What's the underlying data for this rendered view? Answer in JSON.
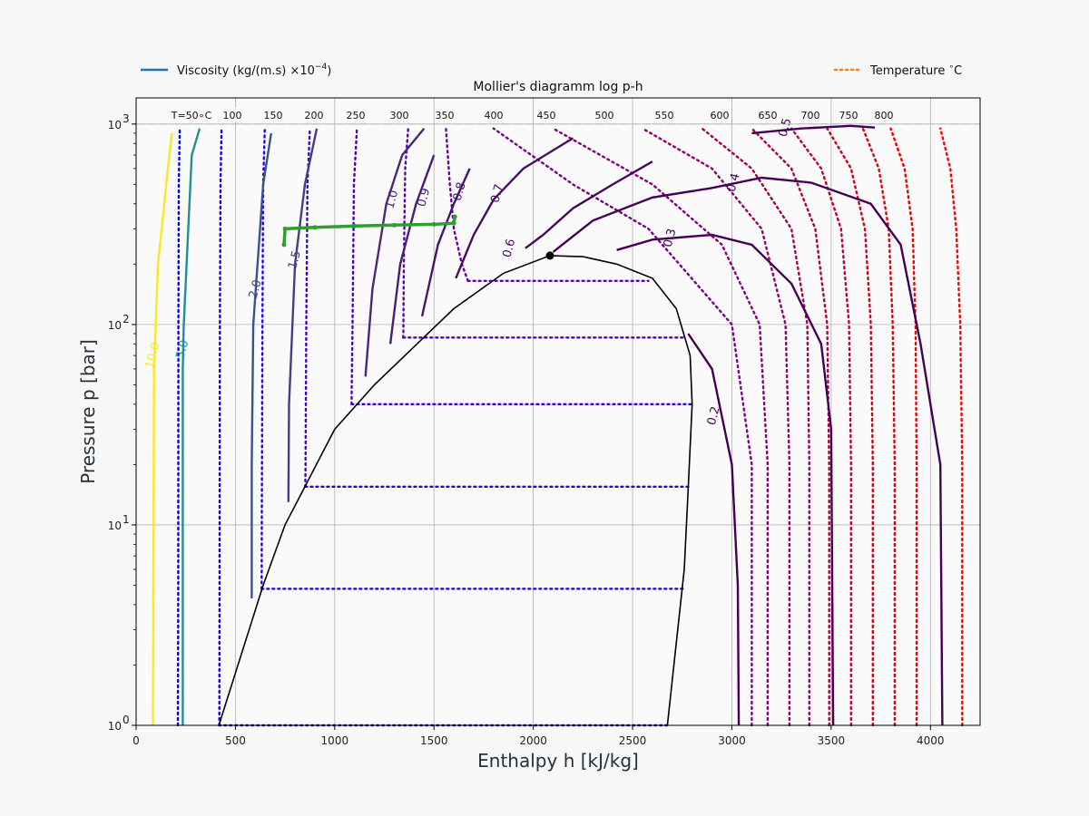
{
  "chart_data": {
    "type": "line",
    "title": "Mollier's diagramm log p-h",
    "xlabel": "Enthalpy h [kJ/kg]",
    "ylabel": "Pressure p [bar]",
    "xlim": [
      0,
      4250
    ],
    "ylim": [
      1,
      1350
    ],
    "yscale": "log",
    "grid": true,
    "legend_placement": "top, outside plot",
    "x_ticks": [
      "0",
      "500",
      "1000",
      "1500",
      "2000",
      "2500",
      "3000",
      "3500",
      "4000"
    ],
    "y_ticks": [
      {
        "value": 1,
        "base": "10",
        "exp": "0"
      },
      {
        "value": 10,
        "base": "10",
        "exp": "1"
      },
      {
        "value": 100,
        "base": "10",
        "exp": "2"
      },
      {
        "value": 1000,
        "base": "10",
        "exp": "3"
      }
    ],
    "legend": [
      {
        "label": "Viscosity (kg/(m.s) ×10",
        "sup": "−4",
        "tail": ")",
        "style": "solid",
        "color": "#1f77b4"
      },
      {
        "label": "Temperature ",
        "sup": "∘",
        "tail": "C",
        "style": "dotted",
        "color": "#ff7f0e"
      }
    ],
    "temperature_labels": [
      "T=50∘C",
      "100",
      "150",
      "200",
      "250",
      "300",
      "350",
      "400",
      "450",
      "500",
      "550",
      "600",
      "650",
      "700",
      "750",
      "800"
    ],
    "saturation_dome": {
      "liquid": [
        [
          417,
          1
        ],
        [
          640,
          5
        ],
        [
          750,
          10
        ],
        [
          1000,
          30
        ],
        [
          1200,
          50
        ],
        [
          1600,
          120
        ],
        [
          1850,
          180
        ],
        [
          2084,
          220.6
        ]
      ],
      "vapor": [
        [
          2084,
          220.6
        ],
        [
          2250,
          218
        ],
        [
          2420,
          200
        ],
        [
          2600,
          170
        ],
        [
          2720,
          120
        ],
        [
          2790,
          70
        ],
        [
          2800,
          40
        ],
        [
          2780,
          15
        ],
        [
          2760,
          6
        ],
        [
          2675,
          1
        ]
      ],
      "critical_point": [
        2084,
        220.6
      ]
    },
    "isotherms": [
      {
        "label": "50",
        "color": "#0000ff",
        "points": [
          [
            210,
            1
          ],
          [
            212,
            5
          ],
          [
            213,
            100
          ],
          [
            215,
            500
          ],
          [
            220,
            950
          ]
        ]
      },
      {
        "label": "100",
        "color": "#1500f0",
        "points": [
          [
            419,
            1
          ],
          [
            420,
            5
          ],
          [
            422,
            100
          ],
          [
            425,
            500
          ],
          [
            430,
            950
          ]
        ]
      },
      {
        "label": "150",
        "color": "#2a00e0",
        "points": [
          [
            632,
            4.8
          ],
          [
            633,
            10
          ],
          [
            636,
            100
          ],
          [
            640,
            500
          ],
          [
            648,
            950
          ]
        ]
      },
      {
        "label": "200",
        "color": "#3c00d0",
        "points": [
          [
            852,
            15.5
          ],
          [
            853,
            20
          ],
          [
            857,
            100
          ],
          [
            863,
            500
          ],
          [
            875,
            950
          ]
        ]
      },
      {
        "label": "250",
        "color": "#4a00c0",
        "points": [
          [
            1085,
            40
          ],
          [
            1086,
            50
          ],
          [
            1090,
            100
          ],
          [
            1097,
            500
          ],
          [
            1112,
            950
          ]
        ]
      },
      {
        "label": "300",
        "color": "#5a00b0",
        "points": [
          [
            1345,
            86
          ],
          [
            1346,
            90
          ],
          [
            1348,
            200
          ],
          [
            1355,
            600
          ],
          [
            1370,
            950
          ]
        ]
      },
      {
        "label": "350",
        "color": "#6a00a0",
        "points": [
          [
            1671,
            165
          ],
          [
            1640,
            200
          ],
          [
            1600,
            300
          ],
          [
            1580,
            500
          ],
          [
            1560,
            950
          ]
        ]
      },
      {
        "label": "400",
        "color": "#7a008c",
        "points": [
          [
            3100,
            1
          ],
          [
            3100,
            20
          ],
          [
            3000,
            100
          ],
          [
            2580,
            300
          ],
          [
            2200,
            500
          ],
          [
            1800,
            950
          ]
        ]
      },
      {
        "label": "450",
        "color": "#880078",
        "points": [
          [
            3180,
            1
          ],
          [
            3180,
            20
          ],
          [
            3140,
            100
          ],
          [
            2950,
            250
          ],
          [
            2600,
            500
          ],
          [
            2100,
            950
          ]
        ]
      },
      {
        "label": "500",
        "color": "#960064",
        "points": [
          [
            3290,
            1
          ],
          [
            3290,
            20
          ],
          [
            3270,
            100
          ],
          [
            3150,
            300
          ],
          [
            2900,
            600
          ],
          [
            2550,
            950
          ]
        ]
      },
      {
        "label": "550",
        "color": "#a40050",
        "points": [
          [
            3390,
            1
          ],
          [
            3390,
            20
          ],
          [
            3380,
            100
          ],
          [
            3300,
            300
          ],
          [
            3100,
            600
          ],
          [
            2850,
            950
          ]
        ]
      },
      {
        "label": "600",
        "color": "#b2003c",
        "points": [
          [
            3490,
            1
          ],
          [
            3490,
            20
          ],
          [
            3480,
            100
          ],
          [
            3420,
            300
          ],
          [
            3300,
            600
          ],
          [
            3100,
            950
          ]
        ]
      },
      {
        "label": "650",
        "color": "#c00028",
        "points": [
          [
            3600,
            1
          ],
          [
            3600,
            20
          ],
          [
            3590,
            100
          ],
          [
            3550,
            300
          ],
          [
            3450,
            600
          ],
          [
            3300,
            950
          ]
        ]
      },
      {
        "label": "700",
        "color": "#cc001e",
        "points": [
          [
            3710,
            1
          ],
          [
            3710,
            20
          ],
          [
            3700,
            100
          ],
          [
            3670,
            300
          ],
          [
            3600,
            600
          ],
          [
            3480,
            950
          ]
        ]
      },
      {
        "label": "750",
        "color": "#dd0010",
        "points": [
          [
            3820,
            1
          ],
          [
            3820,
            20
          ],
          [
            3810,
            100
          ],
          [
            3790,
            300
          ],
          [
            3740,
            600
          ],
          [
            3660,
            950
          ]
        ]
      },
      {
        "label": "800",
        "color": "#ee0000",
        "points": [
          [
            3930,
            1
          ],
          [
            3930,
            20
          ],
          [
            3925,
            100
          ],
          [
            3910,
            300
          ],
          [
            3870,
            600
          ],
          [
            3800,
            950
          ]
        ]
      },
      {
        "label": "",
        "color": "#ff0000",
        "points": [
          [
            4160,
            1
          ],
          [
            4160,
            20
          ],
          [
            4150,
            100
          ],
          [
            4130,
            300
          ],
          [
            4100,
            600
          ],
          [
            4050,
            950
          ]
        ]
      }
    ],
    "isobars_two_phase": [
      {
        "p": 1,
        "h": [
          417,
          2675
        ],
        "color": "#3000d8"
      },
      {
        "p": 4.8,
        "h": [
          632,
          2760
        ],
        "color": "#3000d8"
      },
      {
        "p": 15.5,
        "h": [
          852,
          2795
        ],
        "color": "#3000d8"
      },
      {
        "p": 40,
        "h": [
          1085,
          2800
        ],
        "color": "#3c00d0"
      },
      {
        "p": 86,
        "h": [
          1345,
          2760
        ],
        "color": "#4a00c0"
      },
      {
        "p": 165,
        "h": [
          1671,
          2580
        ],
        "color": "#5a00b0"
      }
    ],
    "viscosity_isolines": [
      {
        "label": "10.0",
        "color": "#fde725",
        "points": [
          [
            85,
            1
          ],
          [
            90,
            60
          ],
          [
            110,
            200
          ],
          [
            160,
            600
          ],
          [
            180,
            900
          ]
        ],
        "label_at": [
          85,
          70
        ]
      },
      {
        "label": "5.0",
        "color": "#21918c",
        "points": [
          [
            235,
            1
          ],
          [
            235,
            60
          ],
          [
            240,
            100
          ],
          [
            280,
            700
          ],
          [
            320,
            950
          ]
        ],
        "label_at": [
          235,
          75
        ]
      },
      {
        "label": "2.0",
        "color": "#3b528b",
        "points": [
          [
            582,
            4.3
          ],
          [
            582,
            20
          ],
          [
            590,
            100
          ],
          [
            640,
            500
          ],
          [
            680,
            900
          ]
        ],
        "label_at": [
          602,
          150
        ]
      },
      {
        "label": "1.5",
        "color": "#433e85",
        "points": [
          [
            767,
            13
          ],
          [
            770,
            40
          ],
          [
            800,
            200
          ],
          [
            850,
            500
          ],
          [
            910,
            950
          ]
        ],
        "label_at": [
          800,
          210
        ]
      },
      {
        "label": "1.0",
        "color": "#482878",
        "points": [
          [
            1155,
            55
          ],
          [
            1190,
            150
          ],
          [
            1260,
            400
          ],
          [
            1340,
            700
          ],
          [
            1450,
            950
          ]
        ],
        "label_at": [
          1290,
          420
        ]
      },
      {
        "label": "0.9",
        "color": "#481f70",
        "points": [
          [
            1280,
            80
          ],
          [
            1330,
            200
          ],
          [
            1410,
            400
          ],
          [
            1500,
            700
          ]
        ],
        "label_at": [
          1450,
          430
        ]
      },
      {
        "label": "0.8",
        "color": "#46156c",
        "points": [
          [
            1440,
            110
          ],
          [
            1520,
            250
          ],
          [
            1600,
            400
          ],
          [
            1680,
            600
          ]
        ],
        "label_at": [
          1630,
          460
        ]
      },
      {
        "label": "0.7",
        "color": "#440f5f",
        "points": [
          [
            1610,
            170
          ],
          [
            1700,
            280
          ],
          [
            1800,
            420
          ],
          [
            1950,
            600
          ],
          [
            2200,
            850
          ]
        ],
        "label_at": [
          1820,
          450
        ]
      },
      {
        "label": "0.6",
        "color": "#440a5a",
        "points": [
          [
            1960,
            240
          ],
          [
            2050,
            280
          ],
          [
            2200,
            380
          ],
          [
            2400,
            500
          ],
          [
            2600,
            650
          ]
        ],
        "label_at": [
          1880,
          240
        ]
      },
      {
        "label": "0.5",
        "color": "#440154",
        "points": [
          [
            3100,
            900
          ],
          [
            3350,
            950
          ],
          [
            3600,
            980
          ],
          [
            3720,
            960
          ]
        ],
        "label_at": [
          3270,
          960
        ]
      },
      {
        "label": "0.4",
        "color": "#440154",
        "points": [
          [
            2100,
            230
          ],
          [
            2300,
            330
          ],
          [
            2600,
            430
          ],
          [
            2900,
            480
          ],
          [
            3150,
            540
          ],
          [
            3400,
            510
          ],
          [
            3700,
            400
          ],
          [
            3850,
            250
          ],
          [
            3950,
            80
          ],
          [
            4050,
            20
          ],
          [
            4060,
            1
          ]
        ],
        "label_at": [
          3010,
          510
        ]
      },
      {
        "label": "0.3",
        "color": "#440154",
        "points": [
          [
            2420,
            235
          ],
          [
            2600,
            265
          ],
          [
            2900,
            280
          ],
          [
            3100,
            250
          ],
          [
            3300,
            160
          ],
          [
            3450,
            80
          ],
          [
            3500,
            30
          ],
          [
            3510,
            1
          ]
        ],
        "label_at": [
          2690,
          270
        ]
      },
      {
        "label": "0.2",
        "color": "#440154",
        "points": [
          [
            2780,
            90
          ],
          [
            2900,
            60
          ],
          [
            3000,
            20
          ],
          [
            3030,
            5
          ],
          [
            3035,
            1
          ]
        ],
        "label_at": [
          2910,
          35
        ]
      }
    ],
    "process_line": {
      "color": "#2ca02c",
      "points": [
        [
          745,
          250
        ],
        [
          750,
          300
        ],
        [
          900,
          305
        ],
        [
          1100,
          310
        ],
        [
          1300,
          313
        ],
        [
          1500,
          316
        ],
        [
          1600,
          320
        ],
        [
          1605,
          345
        ]
      ]
    }
  }
}
